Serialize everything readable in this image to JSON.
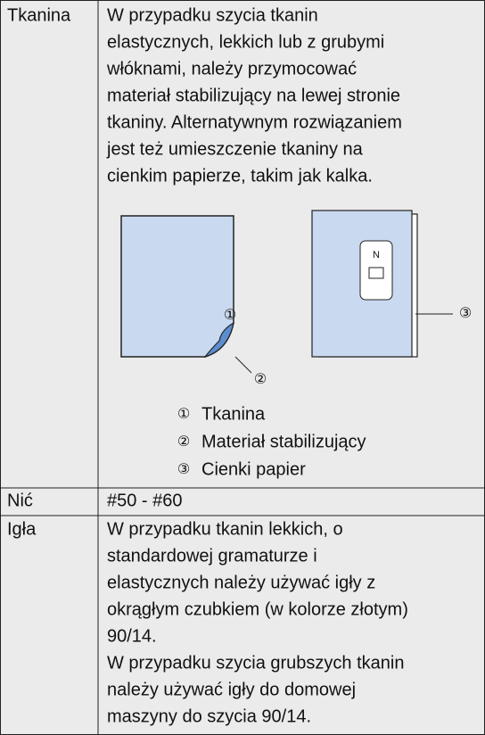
{
  "table": {
    "rows": [
      {
        "label": "Tkanina",
        "lines": [
          "W przypadku szycia tkanin",
          "elastycznych, lekkich lub z grubymi",
          "włóknami, należy przymocować",
          "materiał stabilizujący na lewej stronie",
          "tkaniny. Alternatywnym rozwiązaniem",
          "jest też umieszczenie tkaniny na",
          "cienkim papierze, takim jak kalka."
        ],
        "figure_callouts": [
          "①",
          "②",
          "③"
        ],
        "figure_presser_letter": "N",
        "legend": [
          {
            "marker": "①",
            "text": "Tkanina"
          },
          {
            "marker": "②",
            "text": "Materiał stabilizujący"
          },
          {
            "marker": "③",
            "text": "Cienki papier"
          }
        ]
      },
      {
        "label": "Nić",
        "lines": [
          "#50 - #60"
        ]
      },
      {
        "label": "Igła",
        "lines": [
          "W przypadku tkanin lekkich, o",
          "standardowej gramaturze i",
          "elastycznych należy używać igły z",
          "okrągłym czubkiem (w kolorze złotym)",
          "90/14.",
          "W przypadku szycia grubszych tkanin",
          "należy używać igły do domowej",
          "maszyny do szycia 90/14."
        ]
      }
    ]
  }
}
